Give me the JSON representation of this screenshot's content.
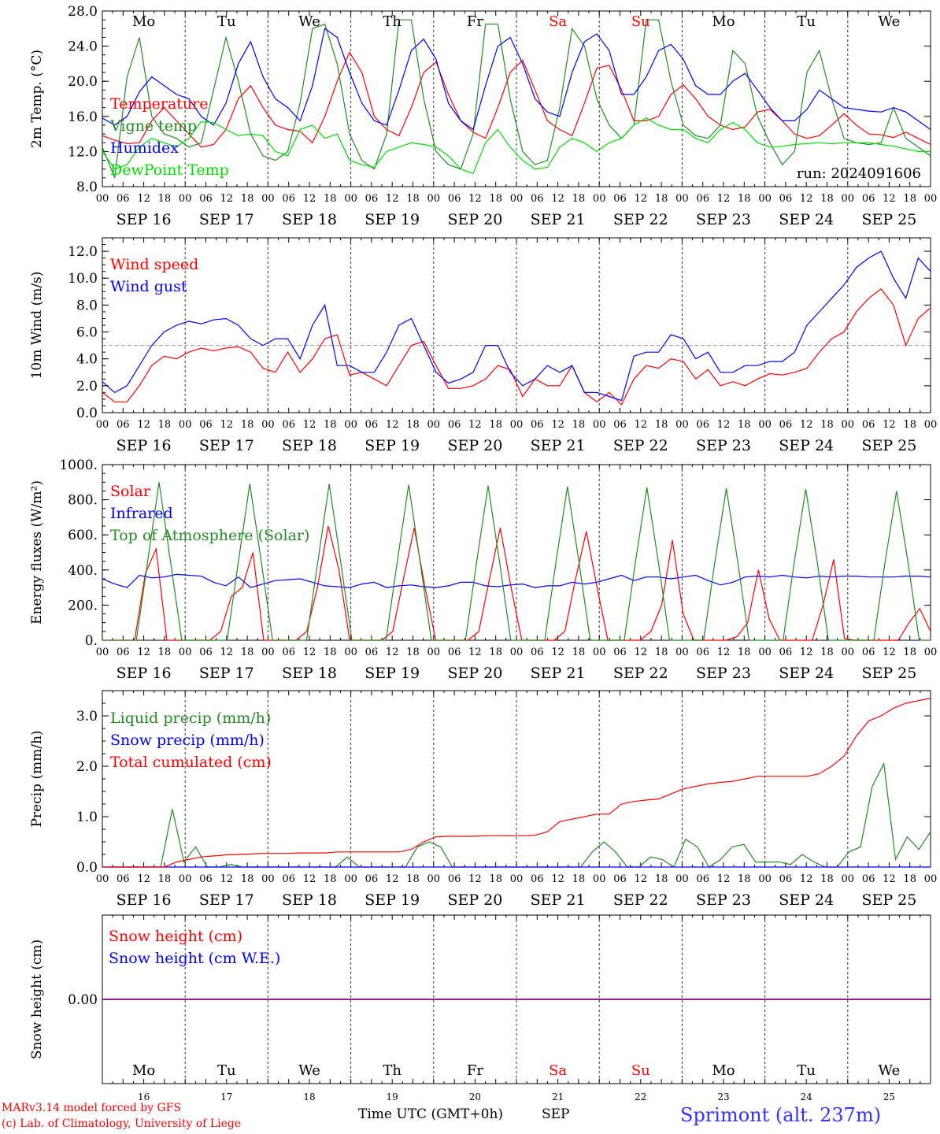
{
  "chart_data": [
    {
      "type": "line",
      "ylabel": "2m Temp. (°C)",
      "yticks": [
        "8.0",
        "12.0",
        "16.0",
        "20.0",
        "24.0",
        "28.0"
      ],
      "ylim": [
        8,
        28
      ],
      "day_labels": [
        "Mo",
        "Tu",
        "We",
        "Th",
        "Fr",
        "Sa",
        "Su",
        "Mo",
        "Tu",
        "We"
      ],
      "run_label": "run: 2024091606",
      "series": [
        {
          "name": "Temperature",
          "color": "#ff0000",
          "values": [
            13.8,
            13.3,
            12.9,
            13.0,
            15.5,
            17.0,
            15.5,
            14.0,
            12.5,
            12.8,
            14.5,
            18.0,
            19.5,
            17.0,
            15.0,
            14.5,
            14.3,
            13.0,
            16.0,
            20.0,
            23.3,
            21.0,
            16.0,
            14.5,
            13.8,
            17.0,
            21.0,
            22.2,
            18.5,
            15.5,
            14.2,
            13.5,
            17.0,
            21.0,
            22.4,
            19.0,
            15.5,
            14.5,
            13.8,
            17.5,
            21.5,
            21.8,
            19.0,
            15.5,
            15.5,
            16.0,
            18.5,
            19.6,
            18.0,
            16.0,
            15.0,
            14.5,
            14.8,
            16.5,
            16.8,
            15.5,
            14.0,
            13.5,
            13.8,
            15.0,
            16.3,
            15.0,
            14.0,
            13.9,
            13.6,
            14.2,
            13.5,
            12.8
          ]
        },
        {
          "name": "Vigne temp",
          "color": "#228b22",
          "values": [
            12.5,
            9.0,
            20.5,
            25.0,
            16.0,
            14.0,
            13.5,
            12.5,
            13.0,
            19.0,
            25.0,
            20.0,
            14.0,
            11.5,
            11.0,
            12.0,
            17.5,
            26.0,
            26.5,
            22.0,
            14.0,
            11.0,
            10.0,
            14.0,
            27.0,
            27.0,
            18.0,
            12.0,
            10.5,
            10.0,
            14.0,
            26.5,
            26.5,
            18.0,
            12.0,
            10.5,
            11.0,
            17.0,
            26.0,
            24.0,
            18.0,
            15.0,
            13.5,
            15.0,
            27.0,
            27.0,
            20.0,
            15.0,
            13.8,
            13.5,
            15.0,
            23.5,
            22.0,
            16.0,
            13.0,
            10.5,
            12.0,
            21.0,
            23.5,
            18.0,
            13.5,
            13.0,
            12.8,
            13.0,
            17.0,
            13.5,
            12.5,
            11.5
          ]
        },
        {
          "name": "Humidex",
          "color": "#0000ff",
          "values": [
            15.8,
            15.0,
            16.0,
            18.8,
            20.5,
            19.5,
            18.5,
            18.0,
            16.0,
            15.0,
            17.5,
            22.0,
            24.5,
            20.5,
            18.0,
            17.0,
            15.5,
            19.5,
            26.0,
            25.0,
            21.0,
            17.5,
            15.5,
            15.0,
            19.0,
            23.5,
            24.8,
            22.5,
            17.5,
            15.5,
            14.5,
            19.5,
            24.0,
            25.0,
            22.0,
            18.0,
            16.5,
            16.0,
            21.0,
            24.5,
            25.4,
            23.5,
            18.5,
            18.5,
            20.5,
            23.5,
            24.2,
            22.5,
            19.5,
            18.5,
            18.5,
            20.0,
            20.9,
            19.0,
            17.0,
            15.5,
            15.5,
            16.8,
            19.0,
            18.0,
            17.0,
            16.8,
            16.6,
            16.5,
            17.0,
            16.5,
            15.5,
            14.5
          ]
        },
        {
          "name": "DewPoint Temp",
          "color": "#00dd00",
          "values": [
            12.0,
            10.0,
            10.5,
            12.5,
            13.5,
            13.0,
            12.5,
            13.5,
            15.4,
            15.3,
            14.5,
            13.8,
            14.0,
            13.8,
            12.0,
            11.5,
            14.5,
            15.0,
            13.5,
            14.0,
            11.0,
            10.5,
            10.2,
            12.0,
            12.5,
            13.0,
            12.8,
            12.5,
            11.5,
            10.0,
            9.5,
            13.0,
            14.5,
            12.5,
            11.0,
            10.0,
            10.2,
            12.5,
            13.5,
            13.0,
            12.0,
            13.0,
            13.5,
            15.0,
            15.8,
            15.0,
            14.5,
            14.5,
            13.5,
            13.0,
            14.5,
            15.3,
            14.5,
            13.0,
            12.5,
            12.6,
            12.8,
            12.9,
            13.0,
            12.9,
            13.0,
            13.0,
            13.0,
            12.8,
            12.6,
            12.3,
            12.0,
            12.0
          ]
        }
      ]
    },
    {
      "type": "line",
      "ylabel": "10m Wind (m/s)",
      "yticks": [
        "0.0",
        "2.0",
        "4.0",
        "6.0",
        "8.0",
        "10.0",
        "12.0"
      ],
      "ylim": [
        0,
        13
      ],
      "reference_line": 5,
      "series": [
        {
          "name": "Wind speed",
          "color": "#ff0000",
          "values": [
            1.5,
            0.8,
            0.8,
            2.0,
            3.5,
            4.2,
            4.0,
            4.5,
            4.8,
            4.6,
            4.8,
            4.9,
            4.5,
            3.3,
            3.0,
            4.5,
            3.0,
            4.0,
            5.5,
            5.8,
            2.8,
            3.0,
            2.5,
            2.0,
            3.5,
            5.0,
            5.3,
            3.5,
            1.8,
            1.8,
            2.0,
            2.5,
            3.5,
            3.2,
            1.2,
            2.5,
            2.0,
            2.0,
            3.5,
            1.5,
            0.8,
            1.5,
            0.6,
            2.5,
            3.5,
            3.3,
            4.0,
            3.8,
            2.5,
            3.2,
            2.0,
            2.3,
            2.0,
            2.5,
            2.9,
            2.8,
            3.0,
            3.3,
            4.5,
            5.5,
            6.0,
            7.5,
            8.5,
            9.2,
            8.0,
            5.0,
            7.0,
            7.8
          ]
        },
        {
          "name": "Wind gust",
          "color": "#0000ff",
          "values": [
            2.3,
            1.5,
            2.0,
            3.5,
            5.0,
            6.0,
            6.5,
            6.8,
            6.6,
            6.9,
            7.0,
            6.5,
            5.5,
            5.0,
            5.5,
            5.5,
            4.0,
            6.5,
            8.0,
            3.5,
            3.5,
            3.0,
            3.0,
            4.5,
            6.5,
            7.0,
            5.0,
            3.0,
            2.2,
            2.5,
            3.0,
            5.0,
            5.0,
            3.0,
            2.0,
            2.5,
            3.5,
            3.0,
            3.5,
            1.5,
            1.5,
            1.2,
            0.9,
            4.2,
            4.5,
            4.5,
            5.8,
            5.5,
            4.0,
            4.5,
            3.0,
            3.0,
            3.5,
            3.5,
            3.8,
            3.8,
            4.5,
            6.5,
            7.5,
            8.5,
            9.5,
            10.8,
            11.5,
            12.0,
            10.0,
            8.5,
            11.5,
            10.5
          ]
        }
      ]
    },
    {
      "type": "line",
      "ylabel": "Energy fluxes (W/m²)",
      "yticks": [
        "0.",
        "200.",
        "400.",
        "600.",
        "800.",
        "1000."
      ],
      "ylim": [
        0,
        1000
      ],
      "series": [
        {
          "name": "Solar",
          "color": "#ff0000",
          "values": [
            0,
            0,
            0,
            0,
            380,
            520,
            0,
            0,
            0,
            0,
            0,
            50,
            250,
            300,
            500,
            0,
            0,
            0,
            0,
            50,
            300,
            650,
            400,
            0,
            0,
            0,
            0,
            50,
            350,
            640,
            300,
            0,
            0,
            0,
            0,
            50,
            350,
            640,
            300,
            0,
            0,
            0,
            0,
            50,
            350,
            620,
            300,
            0,
            0,
            0,
            0,
            50,
            200,
            570,
            150,
            0,
            0,
            0,
            0,
            20,
            100,
            400,
            120,
            0,
            0,
            0,
            0,
            200,
            460,
            10,
            0,
            0,
            0,
            0,
            0,
            100,
            180,
            50
          ]
        },
        {
          "name": "Infrared",
          "color": "#0000ff",
          "values": [
            350,
            320,
            300,
            370,
            355,
            360,
            375,
            370,
            365,
            330,
            310,
            360,
            300,
            320,
            340,
            345,
            350,
            330,
            310,
            305,
            300,
            320,
            330,
            300,
            310,
            315,
            305,
            300,
            310,
            330,
            330,
            310,
            305,
            315,
            320,
            300,
            310,
            310,
            330,
            320,
            330,
            350,
            370,
            340,
            360,
            360,
            350,
            360,
            370,
            340,
            315,
            330,
            360,
            365,
            360,
            370,
            360,
            355,
            365,
            360,
            365,
            365,
            360,
            360,
            360,
            365,
            365,
            360
          ]
        },
        {
          "name": "Top of Atmosphere (Solar)",
          "color": "#228b22",
          "values": [
            0,
            0,
            0,
            0,
            450,
            900,
            450,
            0,
            0,
            0,
            0,
            0,
            450,
            890,
            450,
            0,
            0,
            0,
            0,
            450,
            890,
            450,
            0,
            0,
            0,
            0,
            450,
            885,
            450,
            0,
            0,
            0,
            0,
            450,
            880,
            450,
            0,
            0,
            0,
            0,
            450,
            875,
            450,
            0,
            0,
            0,
            0,
            450,
            870,
            450,
            0,
            0,
            0,
            0,
            450,
            865,
            450,
            0,
            0,
            0,
            0,
            450,
            860,
            450,
            0,
            0,
            0,
            0,
            0,
            450,
            850,
            450,
            0,
            0
          ]
        }
      ]
    },
    {
      "type": "line",
      "ylabel": "Precip (mm/h)",
      "yticks": [
        "0.0",
        "1.0",
        "2.0",
        "3.0"
      ],
      "ylim": [
        0,
        3.5
      ],
      "series": [
        {
          "name": "Liquid precip (mm/h)",
          "color": "#228b22",
          "values": [
            0,
            0,
            0,
            0,
            0,
            0,
            1.15,
            0.1,
            0.4,
            0,
            0,
            0.05,
            0,
            0,
            0,
            0,
            0,
            0,
            0,
            0,
            0,
            0.2,
            0,
            0,
            0,
            0,
            0,
            0.4,
            0.5,
            0.4,
            0,
            0,
            0,
            0,
            0,
            0,
            0,
            0,
            0,
            0,
            0,
            0,
            0.3,
            0.5,
            0.3,
            0,
            0,
            0.2,
            0.15,
            0,
            0.55,
            0.4,
            0,
            0.15,
            0.4,
            0.45,
            0.1,
            0.1,
            0.1,
            0.05,
            0.25,
            0.1,
            0,
            0,
            0.3,
            0.4,
            1.6,
            2.05,
            0.15,
            0.6,
            0.35,
            0.7
          ]
        },
        {
          "name": "Snow precip (mm/h)",
          "color": "#0000ff",
          "values": [
            0,
            0,
            0,
            0,
            0,
            0,
            0,
            0,
            0,
            0,
            0,
            0,
            0,
            0,
            0,
            0,
            0,
            0,
            0,
            0,
            0,
            0,
            0,
            0,
            0,
            0,
            0,
            0,
            0,
            0,
            0,
            0,
            0,
            0,
            0,
            0,
            0,
            0,
            0,
            0,
            0,
            0,
            0,
            0,
            0,
            0,
            0,
            0,
            0,
            0,
            0,
            0,
            0,
            0,
            0,
            0,
            0,
            0,
            0,
            0,
            0,
            0,
            0,
            0,
            0,
            0,
            0,
            0,
            0,
            0,
            0,
            0
          ]
        },
        {
          "name": "Total cumulated (cm)",
          "color": "#ff0000",
          "values": [
            0,
            0,
            0,
            0,
            0,
            0,
            0.1,
            0.15,
            0.2,
            0.22,
            0.24,
            0.25,
            0.26,
            0.27,
            0.27,
            0.27,
            0.28,
            0.28,
            0.28,
            0.3,
            0.3,
            0.3,
            0.3,
            0.3,
            0.3,
            0.35,
            0.5,
            0.6,
            0.61,
            0.61,
            0.61,
            0.62,
            0.62,
            0.62,
            0.62,
            0.63,
            0.7,
            0.9,
            0.95,
            1.0,
            1.05,
            1.05,
            1.25,
            1.3,
            1.33,
            1.35,
            1.45,
            1.55,
            1.6,
            1.65,
            1.68,
            1.7,
            1.75,
            1.8,
            1.8,
            1.8,
            1.8,
            1.8,
            1.85,
            2.0,
            2.2,
            2.6,
            2.9,
            3.0,
            3.15,
            3.25,
            3.3,
            3.35
          ]
        }
      ]
    },
    {
      "type": "line",
      "ylabel": "Snow height (cm)",
      "yticks": [
        "0.00"
      ],
      "series": [
        {
          "name": "Snow height (cm)",
          "color": "#ff0000",
          "values": [
            0,
            0
          ]
        },
        {
          "name": "Snow height (cm W.E.)",
          "color": "#0000ff",
          "values": [
            0,
            0
          ]
        }
      ],
      "day_labels": [
        "Mo",
        "Tu",
        "We",
        "Th",
        "Fr",
        "Sa",
        "Su",
        "Mo",
        "Tu",
        "We"
      ],
      "day_numbers": [
        "16",
        "17",
        "18",
        "19",
        "20",
        "21",
        "22",
        "23",
        "24",
        "25"
      ]
    }
  ],
  "x_axis": {
    "hour_labels": [
      "00",
      "06",
      "12",
      "18"
    ],
    "end_label": "00",
    "date_labels": [
      "SEP 16",
      "SEP 17",
      "SEP 18",
      "SEP 19",
      "SEP 20",
      "SEP 21",
      "SEP 22",
      "SEP 23",
      "SEP 24",
      "SEP 25"
    ],
    "xlabel": "Time UTC (GMT+0h)",
    "month": "SEP"
  },
  "weekend_color": "#ff0000",
  "footer": {
    "model": "MARv3.14 model forced by GFS",
    "copyright": "(c) Lab. of Climatology, University of Liege",
    "station": "Sprimont (alt. 237m)"
  }
}
